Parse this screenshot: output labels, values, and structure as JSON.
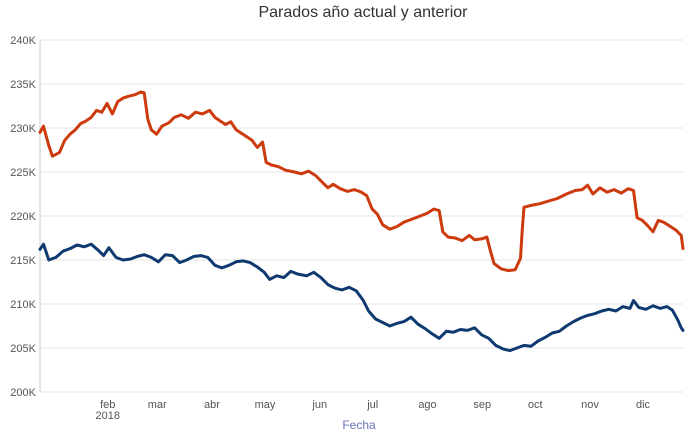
{
  "chart_data": {
    "type": "line",
    "title": "Parados año actual y anterior",
    "xlabel": "Fecha",
    "ylabel": "",
    "x_range": [
      "2018-01-01",
      "2018-12-31"
    ],
    "ylim": [
      200000,
      240000
    ],
    "y_ticks": [
      {
        "value": 200000,
        "label": "200K"
      },
      {
        "value": 205000,
        "label": "205K"
      },
      {
        "value": 210000,
        "label": "210K"
      },
      {
        "value": 215000,
        "label": "215K"
      },
      {
        "value": 220000,
        "label": "220K"
      },
      {
        "value": 225000,
        "label": "225K"
      },
      {
        "value": 230000,
        "label": "230K"
      },
      {
        "value": 235000,
        "label": "235K"
      },
      {
        "value": 240000,
        "label": "240K"
      }
    ],
    "x_ticks": [
      {
        "date": "2018-02-01",
        "label": "feb"
      },
      {
        "date": "2018-03-01",
        "label": "mar"
      },
      {
        "date": "2018-04-01",
        "label": "abr"
      },
      {
        "date": "2018-05-01",
        "label": "may"
      },
      {
        "date": "2018-06-01",
        "label": "jun"
      },
      {
        "date": "2018-07-01",
        "label": "jul"
      },
      {
        "date": "2018-08-01",
        "label": "ago"
      },
      {
        "date": "2018-09-01",
        "label": "sep"
      },
      {
        "date": "2018-10-01",
        "label": "oct"
      },
      {
        "date": "2018-11-01",
        "label": "nov"
      },
      {
        "date": "2018-12-01",
        "label": "dic"
      }
    ],
    "year_label": {
      "date": "2018-02-01",
      "label": "2018"
    },
    "grid": true,
    "legend": "none",
    "series": [
      {
        "color": "#cc3a0e",
        "points": [
          [
            "2018-01-01",
            229500
          ],
          [
            "2018-01-03",
            230200
          ],
          [
            "2018-01-06",
            228000
          ],
          [
            "2018-01-08",
            226800
          ],
          [
            "2018-01-12",
            227200
          ],
          [
            "2018-01-15",
            228600
          ],
          [
            "2018-01-18",
            229300
          ],
          [
            "2018-01-21",
            229800
          ],
          [
            "2018-01-24",
            230500
          ],
          [
            "2018-01-27",
            230800
          ],
          [
            "2018-01-30",
            231200
          ],
          [
            "2018-02-02",
            232000
          ],
          [
            "2018-02-05",
            231800
          ],
          [
            "2018-02-08",
            232800
          ],
          [
            "2018-02-11",
            231600
          ],
          [
            "2018-02-14",
            233000
          ],
          [
            "2018-02-17",
            233400
          ],
          [
            "2018-02-20",
            233600
          ],
          [
            "2018-02-24",
            233800
          ],
          [
            "2018-02-27",
            234100
          ],
          [
            "2018-03-01",
            234000
          ],
          [
            "2018-03-03",
            231000
          ],
          [
            "2018-03-05",
            229800
          ],
          [
            "2018-03-08",
            229300
          ],
          [
            "2018-03-11",
            230200
          ],
          [
            "2018-03-15",
            230600
          ],
          [
            "2018-03-18",
            231200
          ],
          [
            "2018-03-22",
            231500
          ],
          [
            "2018-03-26",
            231100
          ],
          [
            "2018-03-30",
            231800
          ],
          [
            "2018-04-03",
            231600
          ],
          [
            "2018-04-07",
            232000
          ],
          [
            "2018-04-10",
            231200
          ],
          [
            "2018-04-13",
            230800
          ],
          [
            "2018-04-16",
            230400
          ],
          [
            "2018-04-19",
            230700
          ],
          [
            "2018-04-22",
            229800
          ],
          [
            "2018-04-25",
            229400
          ],
          [
            "2018-04-28",
            229000
          ],
          [
            "2018-05-01",
            228600
          ],
          [
            "2018-05-04",
            227800
          ],
          [
            "2018-05-07",
            228400
          ],
          [
            "2018-05-09",
            226100
          ],
          [
            "2018-05-12",
            225800
          ],
          [
            "2018-05-16",
            225600
          ],
          [
            "2018-05-20",
            225200
          ],
          [
            "2018-05-25",
            225000
          ],
          [
            "2018-05-29",
            224800
          ],
          [
            "2018-06-02",
            225100
          ],
          [
            "2018-06-06",
            224600
          ],
          [
            "2018-06-10",
            223800
          ],
          [
            "2018-06-13",
            223200
          ],
          [
            "2018-06-16",
            223600
          ],
          [
            "2018-06-20",
            223100
          ],
          [
            "2018-06-24",
            222800
          ],
          [
            "2018-06-28",
            223000
          ],
          [
            "2018-07-02",
            222700
          ],
          [
            "2018-07-05",
            222300
          ],
          [
            "2018-07-08",
            220800
          ],
          [
            "2018-07-11",
            220200
          ],
          [
            "2018-07-14",
            219000
          ],
          [
            "2018-07-18",
            218500
          ],
          [
            "2018-07-22",
            218800
          ],
          [
            "2018-07-26",
            219300
          ],
          [
            "2018-07-30",
            219600
          ],
          [
            "2018-08-03",
            219900
          ],
          [
            "2018-08-08",
            220300
          ],
          [
            "2018-08-12",
            220800
          ],
          [
            "2018-08-15",
            220600
          ],
          [
            "2018-08-17",
            218200
          ],
          [
            "2018-08-20",
            217600
          ],
          [
            "2018-08-24",
            217500
          ],
          [
            "2018-08-28",
            217200
          ],
          [
            "2018-09-01",
            217800
          ],
          [
            "2018-09-04",
            217300
          ],
          [
            "2018-09-08",
            217400
          ],
          [
            "2018-09-11",
            217600
          ],
          [
            "2018-09-13",
            216000
          ],
          [
            "2018-09-15",
            214600
          ],
          [
            "2018-09-19",
            214000
          ],
          [
            "2018-09-23",
            213800
          ],
          [
            "2018-09-27",
            213900
          ],
          [
            "2018-09-30",
            215200
          ],
          [
            "2018-10-01",
            218500
          ],
          [
            "2018-10-02",
            221000
          ],
          [
            "2018-10-06",
            221200
          ],
          [
            "2018-10-11",
            221400
          ],
          [
            "2018-10-16",
            221700
          ],
          [
            "2018-10-21",
            222000
          ],
          [
            "2018-10-26",
            222500
          ],
          [
            "2018-10-31",
            222900
          ],
          [
            "2018-11-04",
            223000
          ],
          [
            "2018-11-07",
            223500
          ],
          [
            "2018-11-10",
            222500
          ],
          [
            "2018-11-14",
            223200
          ],
          [
            "2018-11-18",
            222700
          ],
          [
            "2018-11-22",
            223000
          ],
          [
            "2018-11-26",
            222600
          ],
          [
            "2018-11-30",
            223100
          ],
          [
            "2018-12-03",
            222900
          ],
          [
            "2018-12-05",
            219800
          ],
          [
            "2018-12-08",
            219500
          ],
          [
            "2018-12-11",
            218900
          ],
          [
            "2018-12-14",
            218200
          ],
          [
            "2018-12-17",
            219500
          ],
          [
            "2018-12-20",
            219300
          ],
          [
            "2018-12-24",
            218800
          ],
          [
            "2018-12-27",
            218400
          ],
          [
            "2018-12-30",
            217800
          ],
          [
            "2018-12-31",
            216300
          ]
        ]
      },
      {
        "color": "#0e3a70",
        "points": [
          [
            "2018-01-01",
            216200
          ],
          [
            "2018-01-03",
            216800
          ],
          [
            "2018-01-06",
            215000
          ],
          [
            "2018-01-10",
            215300
          ],
          [
            "2018-01-14",
            216000
          ],
          [
            "2018-01-18",
            216300
          ],
          [
            "2018-01-22",
            216700
          ],
          [
            "2018-01-26",
            216500
          ],
          [
            "2018-01-30",
            216800
          ],
          [
            "2018-02-03",
            216100
          ],
          [
            "2018-02-06",
            215500
          ],
          [
            "2018-02-09",
            216400
          ],
          [
            "2018-02-13",
            215300
          ],
          [
            "2018-02-17",
            215000
          ],
          [
            "2018-02-21",
            215100
          ],
          [
            "2018-02-25",
            215400
          ],
          [
            "2018-03-01",
            215600
          ],
          [
            "2018-03-05",
            215300
          ],
          [
            "2018-03-09",
            214800
          ],
          [
            "2018-03-13",
            215600
          ],
          [
            "2018-03-17",
            215500
          ],
          [
            "2018-03-21",
            214700
          ],
          [
            "2018-03-25",
            215000
          ],
          [
            "2018-03-29",
            215400
          ],
          [
            "2018-04-02",
            215500
          ],
          [
            "2018-04-06",
            215300
          ],
          [
            "2018-04-10",
            214400
          ],
          [
            "2018-04-14",
            214100
          ],
          [
            "2018-04-18",
            214400
          ],
          [
            "2018-04-22",
            214800
          ],
          [
            "2018-04-26",
            214900
          ],
          [
            "2018-04-30",
            214700
          ],
          [
            "2018-05-04",
            214200
          ],
          [
            "2018-05-08",
            213600
          ],
          [
            "2018-05-11",
            212800
          ],
          [
            "2018-05-15",
            213200
          ],
          [
            "2018-05-19",
            213000
          ],
          [
            "2018-05-23",
            213700
          ],
          [
            "2018-05-27",
            213400
          ],
          [
            "2018-06-01",
            213200
          ],
          [
            "2018-06-05",
            213600
          ],
          [
            "2018-06-09",
            213000
          ],
          [
            "2018-06-13",
            212200
          ],
          [
            "2018-06-17",
            211800
          ],
          [
            "2018-06-21",
            211600
          ],
          [
            "2018-06-25",
            211900
          ],
          [
            "2018-06-29",
            211500
          ],
          [
            "2018-07-03",
            210400
          ],
          [
            "2018-07-06",
            209200
          ],
          [
            "2018-07-10",
            208300
          ],
          [
            "2018-07-14",
            207900
          ],
          [
            "2018-07-18",
            207500
          ],
          [
            "2018-07-22",
            207800
          ],
          [
            "2018-07-26",
            208000
          ],
          [
            "2018-07-30",
            208500
          ],
          [
            "2018-08-03",
            207700
          ],
          [
            "2018-08-07",
            207200
          ],
          [
            "2018-08-11",
            206600
          ],
          [
            "2018-08-15",
            206100
          ],
          [
            "2018-08-19",
            206900
          ],
          [
            "2018-08-23",
            206800
          ],
          [
            "2018-08-27",
            207100
          ],
          [
            "2018-08-31",
            207000
          ],
          [
            "2018-09-04",
            207300
          ],
          [
            "2018-09-08",
            206500
          ],
          [
            "2018-09-12",
            206100
          ],
          [
            "2018-09-16",
            205300
          ],
          [
            "2018-09-20",
            204900
          ],
          [
            "2018-09-24",
            204700
          ],
          [
            "2018-09-28",
            205000
          ],
          [
            "2018-10-02",
            205300
          ],
          [
            "2018-10-06",
            205200
          ],
          [
            "2018-10-10",
            205800
          ],
          [
            "2018-10-14",
            206200
          ],
          [
            "2018-10-18",
            206700
          ],
          [
            "2018-10-22",
            206900
          ],
          [
            "2018-10-26",
            207500
          ],
          [
            "2018-10-30",
            208000
          ],
          [
            "2018-11-03",
            208400
          ],
          [
            "2018-11-07",
            208700
          ],
          [
            "2018-11-11",
            208900
          ],
          [
            "2018-11-15",
            209200
          ],
          [
            "2018-11-19",
            209400
          ],
          [
            "2018-11-23",
            209200
          ],
          [
            "2018-11-27",
            209700
          ],
          [
            "2018-12-01",
            209500
          ],
          [
            "2018-12-03",
            210400
          ],
          [
            "2018-12-06",
            209600
          ],
          [
            "2018-12-10",
            209400
          ],
          [
            "2018-12-14",
            209800
          ],
          [
            "2018-12-18",
            209500
          ],
          [
            "2018-12-22",
            209700
          ],
          [
            "2018-12-25",
            209300
          ],
          [
            "2018-12-28",
            208200
          ],
          [
            "2018-12-30",
            207300
          ],
          [
            "2018-12-31",
            207000
          ]
        ]
      }
    ]
  }
}
